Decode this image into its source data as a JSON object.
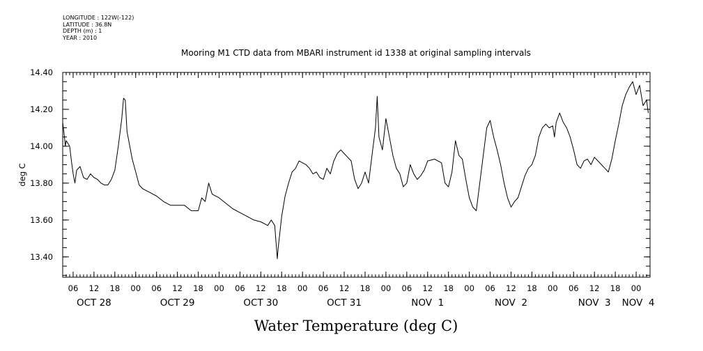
{
  "metadata": {
    "lines": [
      "LONGITUDE : 122W(-122)",
      "LATITUDE : 36.8N",
      "DEPTH (m) : 1",
      "YEAR : 2010"
    ]
  },
  "chart_data": {
    "type": "line",
    "title": "Mooring M1 CTD data from MBARI instrument id 1338 at original sampling intervals",
    "xlabel": "Water Temperature (deg C)",
    "ylabel": "deg C",
    "xlim": [
      "2010-10-28T03:00",
      "2010-11-04T04:00"
    ],
    "ylim": [
      13.29,
      14.4
    ],
    "yticks": [
      13.4,
      13.6,
      13.8,
      14.0,
      14.2,
      14.4
    ],
    "ytick_labels": [
      "13.40",
      "13.60",
      "13.80",
      "14.00",
      "14.20",
      "14.40"
    ],
    "hour_ticks": [
      {
        "t": "2010-10-28T06:00",
        "label": "06"
      },
      {
        "t": "2010-10-28T12:00",
        "label": "12"
      },
      {
        "t": "2010-10-28T18:00",
        "label": "18"
      },
      {
        "t": "2010-10-29T00:00",
        "label": "00"
      },
      {
        "t": "2010-10-29T06:00",
        "label": "06"
      },
      {
        "t": "2010-10-29T12:00",
        "label": "12"
      },
      {
        "t": "2010-10-29T18:00",
        "label": "18"
      },
      {
        "t": "2010-10-30T00:00",
        "label": "00"
      },
      {
        "t": "2010-10-30T06:00",
        "label": "06"
      },
      {
        "t": "2010-10-30T12:00",
        "label": "12"
      },
      {
        "t": "2010-10-30T18:00",
        "label": "18"
      },
      {
        "t": "2010-10-31T00:00",
        "label": "00"
      },
      {
        "t": "2010-10-31T06:00",
        "label": "06"
      },
      {
        "t": "2010-10-31T12:00",
        "label": "12"
      },
      {
        "t": "2010-10-31T18:00",
        "label": "18"
      },
      {
        "t": "2010-11-01T00:00",
        "label": "00"
      },
      {
        "t": "2010-11-01T06:00",
        "label": "06"
      },
      {
        "t": "2010-11-01T12:00",
        "label": "12"
      },
      {
        "t": "2010-11-01T18:00",
        "label": "18"
      },
      {
        "t": "2010-11-02T00:00",
        "label": "00"
      },
      {
        "t": "2010-11-02T06:00",
        "label": "06"
      },
      {
        "t": "2010-11-02T12:00",
        "label": "12"
      },
      {
        "t": "2010-11-02T18:00",
        "label": "18"
      },
      {
        "t": "2010-11-03T00:00",
        "label": "00"
      },
      {
        "t": "2010-11-03T06:00",
        "label": "06"
      },
      {
        "t": "2010-11-03T12:00",
        "label": "12"
      },
      {
        "t": "2010-11-03T18:00",
        "label": "18"
      },
      {
        "t": "2010-11-04T00:00",
        "label": "00"
      }
    ],
    "day_labels": [
      {
        "t": "2010-10-28T12:00",
        "label": "OCT 28"
      },
      {
        "t": "2010-10-29T12:00",
        "label": "OCT 29"
      },
      {
        "t": "2010-10-30T12:00",
        "label": "OCT 30"
      },
      {
        "t": "2010-10-31T12:00",
        "label": "OCT 31"
      },
      {
        "t": "2010-11-01T12:00",
        "label": "NOV  1"
      },
      {
        "t": "2010-11-02T12:00",
        "label": "NOV  2"
      },
      {
        "t": "2010-11-03T12:00",
        "label": "NOV  3"
      },
      {
        "t": "2010-11-04T00:00",
        "label": "NOV  4"
      }
    ],
    "grid": false,
    "series": [
      {
        "color": "#000000",
        "points": [
          [
            "2010-10-28T03:00",
            14.13
          ],
          [
            "2010-10-28T03:30",
            14.05
          ],
          [
            "2010-10-28T03:45",
            14.0
          ],
          [
            "2010-10-28T04:00",
            14.03
          ],
          [
            "2010-10-28T05:00",
            14.0
          ],
          [
            "2010-10-28T05:30",
            13.92
          ],
          [
            "2010-10-28T06:00",
            13.85
          ],
          [
            "2010-10-28T06:30",
            13.8
          ],
          [
            "2010-10-28T07:00",
            13.87
          ],
          [
            "2010-10-28T08:00",
            13.89
          ],
          [
            "2010-10-28T09:00",
            13.83
          ],
          [
            "2010-10-28T10:00",
            13.82
          ],
          [
            "2010-10-28T11:00",
            13.85
          ],
          [
            "2010-10-28T12:00",
            13.83
          ],
          [
            "2010-10-28T13:00",
            13.82
          ],
          [
            "2010-10-28T14:00",
            13.8
          ],
          [
            "2010-10-28T15:00",
            13.79
          ],
          [
            "2010-10-28T16:00",
            13.79
          ],
          [
            "2010-10-28T17:00",
            13.82
          ],
          [
            "2010-10-28T18:00",
            13.87
          ],
          [
            "2010-10-28T19:00",
            14.0
          ],
          [
            "2010-10-28T20:00",
            14.15
          ],
          [
            "2010-10-28T20:30",
            14.26
          ],
          [
            "2010-10-28T21:00",
            14.25
          ],
          [
            "2010-10-28T21:30",
            14.08
          ],
          [
            "2010-10-28T22:00",
            14.03
          ],
          [
            "2010-10-28T23:00",
            13.93
          ],
          [
            "2010-10-29T00:00",
            13.86
          ],
          [
            "2010-10-29T01:00",
            13.79
          ],
          [
            "2010-10-29T02:00",
            13.77
          ],
          [
            "2010-10-29T04:00",
            13.75
          ],
          [
            "2010-10-29T06:00",
            13.73
          ],
          [
            "2010-10-29T08:00",
            13.7
          ],
          [
            "2010-10-29T10:00",
            13.68
          ],
          [
            "2010-10-29T12:00",
            13.68
          ],
          [
            "2010-10-29T14:00",
            13.68
          ],
          [
            "2010-10-29T16:00",
            13.65
          ],
          [
            "2010-10-29T18:00",
            13.65
          ],
          [
            "2010-10-29T19:00",
            13.72
          ],
          [
            "2010-10-29T20:00",
            13.7
          ],
          [
            "2010-10-29T21:00",
            13.8
          ],
          [
            "2010-10-29T22:00",
            13.74
          ],
          [
            "2010-10-30T00:00",
            13.72
          ],
          [
            "2010-10-30T02:00",
            13.69
          ],
          [
            "2010-10-30T04:00",
            13.66
          ],
          [
            "2010-10-30T06:00",
            13.64
          ],
          [
            "2010-10-30T08:00",
            13.62
          ],
          [
            "2010-10-30T10:00",
            13.6
          ],
          [
            "2010-10-30T12:00",
            13.59
          ],
          [
            "2010-10-30T14:00",
            13.57
          ],
          [
            "2010-10-30T15:00",
            13.6
          ],
          [
            "2010-10-30T16:00",
            13.57
          ],
          [
            "2010-10-30T16:45",
            13.39
          ],
          [
            "2010-10-30T17:00",
            13.45
          ],
          [
            "2010-10-30T18:00",
            13.62
          ],
          [
            "2010-10-30T19:00",
            13.73
          ],
          [
            "2010-10-30T20:00",
            13.8
          ],
          [
            "2010-10-30T21:00",
            13.86
          ],
          [
            "2010-10-30T22:00",
            13.88
          ],
          [
            "2010-10-30T23:00",
            13.92
          ],
          [
            "2010-10-31T00:00",
            13.91
          ],
          [
            "2010-10-31T01:00",
            13.9
          ],
          [
            "2010-10-31T02:00",
            13.88
          ],
          [
            "2010-10-31T03:00",
            13.85
          ],
          [
            "2010-10-31T04:00",
            13.86
          ],
          [
            "2010-10-31T05:00",
            13.83
          ],
          [
            "2010-10-31T06:00",
            13.82
          ],
          [
            "2010-10-31T07:00",
            13.88
          ],
          [
            "2010-10-31T08:00",
            13.85
          ],
          [
            "2010-10-31T09:00",
            13.92
          ],
          [
            "2010-10-31T10:00",
            13.96
          ],
          [
            "2010-10-31T11:00",
            13.98
          ],
          [
            "2010-10-31T12:00",
            13.96
          ],
          [
            "2010-10-31T13:00",
            13.94
          ],
          [
            "2010-10-31T14:00",
            13.92
          ],
          [
            "2010-10-31T15:00",
            13.82
          ],
          [
            "2010-10-31T16:00",
            13.77
          ],
          [
            "2010-10-31T17:00",
            13.8
          ],
          [
            "2010-10-31T18:00",
            13.86
          ],
          [
            "2010-10-31T19:00",
            13.8
          ],
          [
            "2010-10-31T20:00",
            13.95
          ],
          [
            "2010-10-31T21:00",
            14.1
          ],
          [
            "2010-10-31T21:30",
            14.27
          ],
          [
            "2010-10-31T22:00",
            14.05
          ],
          [
            "2010-10-31T23:00",
            13.98
          ],
          [
            "2010-11-01T00:00",
            14.15
          ],
          [
            "2010-11-01T01:00",
            14.05
          ],
          [
            "2010-11-01T02:00",
            13.95
          ],
          [
            "2010-11-01T03:00",
            13.88
          ],
          [
            "2010-11-01T04:00",
            13.85
          ],
          [
            "2010-11-01T05:00",
            13.78
          ],
          [
            "2010-11-01T06:00",
            13.8
          ],
          [
            "2010-11-01T07:00",
            13.9
          ],
          [
            "2010-11-01T08:00",
            13.85
          ],
          [
            "2010-11-01T09:00",
            13.82
          ],
          [
            "2010-11-01T10:00",
            13.84
          ],
          [
            "2010-11-01T11:00",
            13.87
          ],
          [
            "2010-11-01T12:00",
            13.92
          ],
          [
            "2010-11-01T14:00",
            13.93
          ],
          [
            "2010-11-01T16:00",
            13.91
          ],
          [
            "2010-11-01T17:00",
            13.8
          ],
          [
            "2010-11-01T18:00",
            13.78
          ],
          [
            "2010-11-01T19:00",
            13.86
          ],
          [
            "2010-11-01T20:00",
            14.03
          ],
          [
            "2010-11-01T21:00",
            13.95
          ],
          [
            "2010-11-01T22:00",
            13.93
          ],
          [
            "2010-11-01T23:00",
            13.82
          ],
          [
            "2010-11-02T00:00",
            13.72
          ],
          [
            "2010-11-02T01:00",
            13.67
          ],
          [
            "2010-11-02T02:00",
            13.65
          ],
          [
            "2010-11-02T03:00",
            13.8
          ],
          [
            "2010-11-02T04:00",
            13.95
          ],
          [
            "2010-11-02T05:00",
            14.1
          ],
          [
            "2010-11-02T06:00",
            14.14
          ],
          [
            "2010-11-02T07:00",
            14.05
          ],
          [
            "2010-11-02T08:00",
            13.98
          ],
          [
            "2010-11-02T09:00",
            13.9
          ],
          [
            "2010-11-02T10:00",
            13.8
          ],
          [
            "2010-11-02T11:00",
            13.72
          ],
          [
            "2010-11-02T12:00",
            13.67
          ],
          [
            "2010-11-02T13:00",
            13.7
          ],
          [
            "2010-11-02T14:00",
            13.72
          ],
          [
            "2010-11-02T15:00",
            13.78
          ],
          [
            "2010-11-02T16:00",
            13.84
          ],
          [
            "2010-11-02T17:00",
            13.88
          ],
          [
            "2010-11-02T18:00",
            13.9
          ],
          [
            "2010-11-02T19:00",
            13.95
          ],
          [
            "2010-11-02T20:00",
            14.05
          ],
          [
            "2010-11-02T21:00",
            14.1
          ],
          [
            "2010-11-02T22:00",
            14.12
          ],
          [
            "2010-11-02T23:00",
            14.1
          ],
          [
            "2010-11-03T00:00",
            14.11
          ],
          [
            "2010-11-03T00:30",
            14.05
          ],
          [
            "2010-11-03T01:00",
            14.13
          ],
          [
            "2010-11-03T02:00",
            14.18
          ],
          [
            "2010-11-03T03:00",
            14.13
          ],
          [
            "2010-11-03T04:00",
            14.1
          ],
          [
            "2010-11-03T05:00",
            14.05
          ],
          [
            "2010-11-03T06:00",
            13.98
          ],
          [
            "2010-11-03T07:00",
            13.9
          ],
          [
            "2010-11-03T08:00",
            13.88
          ],
          [
            "2010-11-03T09:00",
            13.92
          ],
          [
            "2010-11-03T10:00",
            13.93
          ],
          [
            "2010-11-03T11:00",
            13.9
          ],
          [
            "2010-11-03T12:00",
            13.94
          ],
          [
            "2010-11-03T13:00",
            13.92
          ],
          [
            "2010-11-03T14:00",
            13.9
          ],
          [
            "2010-11-03T15:00",
            13.88
          ],
          [
            "2010-11-03T16:00",
            13.86
          ],
          [
            "2010-11-03T17:00",
            13.93
          ],
          [
            "2010-11-03T18:00",
            14.03
          ],
          [
            "2010-11-03T19:00",
            14.12
          ],
          [
            "2010-11-03T20:00",
            14.22
          ],
          [
            "2010-11-03T21:00",
            14.28
          ],
          [
            "2010-11-03T22:00",
            14.32
          ],
          [
            "2010-11-03T23:00",
            14.35
          ],
          [
            "2010-11-04T00:00",
            14.28
          ],
          [
            "2010-11-04T01:00",
            14.33
          ],
          [
            "2010-11-04T02:00",
            14.22
          ],
          [
            "2010-11-04T03:00",
            14.25
          ],
          [
            "2010-11-04T03:30",
            14.18
          ]
        ]
      }
    ]
  }
}
